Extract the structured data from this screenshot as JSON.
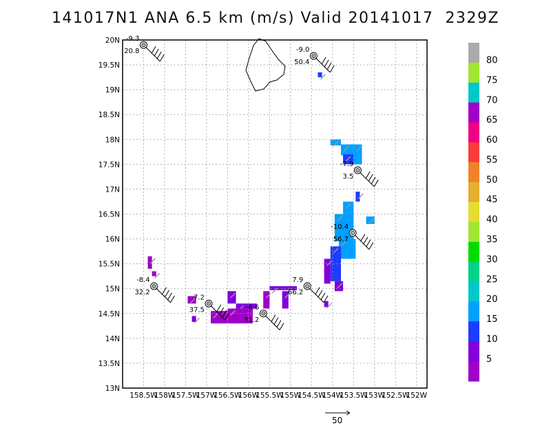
{
  "title": "141017N1 ANA 6.5 km (m/s) Valid 20141017  2329Z",
  "chart_data": {
    "type": "map",
    "lat_range": [
      13,
      20
    ],
    "lon_range": [
      -159,
      -151.75
    ],
    "lat_ticks": [
      {
        "v": 20,
        "label": "20N"
      },
      {
        "v": 19.5,
        "label": "19.5N"
      },
      {
        "v": 19,
        "label": "19N"
      },
      {
        "v": 18.5,
        "label": "18.5N"
      },
      {
        "v": 18,
        "label": "18N"
      },
      {
        "v": 17.5,
        "label": "17.5N"
      },
      {
        "v": 17,
        "label": "17N"
      },
      {
        "v": 16.5,
        "label": "16.5N"
      },
      {
        "v": 16,
        "label": "16N"
      },
      {
        "v": 15.5,
        "label": "15.5N"
      },
      {
        "v": 15,
        "label": "15N"
      },
      {
        "v": 14.5,
        "label": "14.5N"
      },
      {
        "v": 14,
        "label": "14N"
      },
      {
        "v": 13.5,
        "label": "13.5N"
      },
      {
        "v": 13,
        "label": "13N"
      }
    ],
    "lon_ticks": [
      {
        "v": -158.5,
        "label": "158.5W"
      },
      {
        "v": -158,
        "label": "158W"
      },
      {
        "v": -157.5,
        "label": "157.5W"
      },
      {
        "v": -157,
        "label": "157W"
      },
      {
        "v": -156.5,
        "label": "156.5W"
      },
      {
        "v": -156,
        "label": "156W"
      },
      {
        "v": -155.5,
        "label": "155.5W"
      },
      {
        "v": -155,
        "label": "155W"
      },
      {
        "v": -154.5,
        "label": "154.5W"
      },
      {
        "v": -154,
        "label": "154W"
      },
      {
        "v": -153.5,
        "label": "153.5W"
      },
      {
        "v": -153,
        "label": "153W"
      },
      {
        "v": -152.5,
        "label": "152.5W"
      },
      {
        "v": -152,
        "label": "152W"
      }
    ],
    "colorbar": {
      "colors": [
        "#a000c8",
        "#8200dc",
        "#1e3cff",
        "#00a0ff",
        "#00c8c8",
        "#00d28c",
        "#00dc00",
        "#a0e632",
        "#e6dc32",
        "#e6af2d",
        "#f08228",
        "#fa3c3c",
        "#f00082",
        "#a000c8",
        "#00c8c8",
        "#a0e632",
        "#aaaaaa"
      ],
      "labels": [
        "5",
        "10",
        "15",
        "20",
        "25",
        "30",
        "35",
        "40",
        "45",
        "50",
        "55",
        "60",
        "65",
        "70",
        "75",
        "80"
      ]
    },
    "stations": [
      {
        "lon": -158.5,
        "lat": 19.9,
        "top": "-9.3",
        "bottom": "20.8"
      },
      {
        "lon": -154.45,
        "lat": 19.68,
        "top": "-9.0",
        "bottom": "50.4"
      },
      {
        "lon": -153.4,
        "lat": 17.38,
        "top": "-7.9",
        "bottom": "3.5"
      },
      {
        "lon": -153.52,
        "lat": 16.12,
        "top": "-10.4",
        "bottom": "56.7"
      },
      {
        "lon": -158.25,
        "lat": 15.05,
        "top": "-8.4",
        "bottom": "32.2"
      },
      {
        "lon": -156.95,
        "lat": 14.7,
        "top": "7.2",
        "bottom": "37.5"
      },
      {
        "lon": -155.65,
        "lat": 14.5,
        "top": "-6.6",
        "bottom": "31.2"
      },
      {
        "lon": -154.6,
        "lat": 15.05,
        "top": "7.9",
        "bottom": "66.2"
      }
    ],
    "wind_cells": [
      {
        "lon": -154.05,
        "lat": 18.0,
        "w": 0.25,
        "h": 0.12,
        "v": 20
      },
      {
        "lon": -153.8,
        "lat": 17.9,
        "w": 0.3,
        "h": 0.22,
        "v": 20
      },
      {
        "lon": -153.5,
        "lat": 17.9,
        "w": 0.2,
        "h": 0.4,
        "v": 20
      },
      {
        "lon": -153.75,
        "lat": 17.7,
        "w": 0.25,
        "h": 0.2,
        "v": 15
      },
      {
        "lon": -153.2,
        "lat": 16.45,
        "w": 0.2,
        "h": 0.15,
        "v": 20
      },
      {
        "lon": -153.45,
        "lat": 16.95,
        "w": 0.1,
        "h": 0.2,
        "v": 15
      },
      {
        "lon": -153.75,
        "lat": 16.75,
        "w": 0.25,
        "h": 0.3,
        "v": 20
      },
      {
        "lon": -153.95,
        "lat": 16.5,
        "w": 0.45,
        "h": 0.55,
        "v": 20
      },
      {
        "lon": -153.85,
        "lat": 16.0,
        "w": 0.4,
        "h": 0.4,
        "v": 20
      },
      {
        "lon": -154.05,
        "lat": 15.85,
        "w": 0.25,
        "h": 0.7,
        "v": 15
      },
      {
        "lon": -154.2,
        "lat": 15.6,
        "w": 0.15,
        "h": 0.5,
        "v": 10
      },
      {
        "lon": -153.95,
        "lat": 15.15,
        "w": 0.2,
        "h": 0.2,
        "v": 10
      },
      {
        "lon": -154.2,
        "lat": 14.75,
        "w": 0.1,
        "h": 0.12,
        "v": 10
      },
      {
        "lon": -154.35,
        "lat": 19.35,
        "w": 0.1,
        "h": 0.1,
        "v": 15
      },
      {
        "lon": -155.5,
        "lat": 15.05,
        "w": 0.65,
        "h": 0.08,
        "v": 10
      },
      {
        "lon": -155.2,
        "lat": 14.95,
        "w": 0.15,
        "h": 0.35,
        "v": 10
      },
      {
        "lon": -155.65,
        "lat": 14.95,
        "w": 0.15,
        "h": 0.35,
        "v": 5
      },
      {
        "lon": -156.3,
        "lat": 14.7,
        "w": 0.5,
        "h": 0.1,
        "v": 10
      },
      {
        "lon": -156.5,
        "lat": 14.6,
        "w": 0.6,
        "h": 0.3,
        "v": 5
      },
      {
        "lon": -156.9,
        "lat": 14.55,
        "w": 0.4,
        "h": 0.25,
        "v": 5
      },
      {
        "lon": -156.5,
        "lat": 14.95,
        "w": 0.2,
        "h": 0.25,
        "v": 10
      },
      {
        "lon": -157.45,
        "lat": 14.85,
        "w": 0.2,
        "h": 0.15,
        "v": 5
      },
      {
        "lon": -157.35,
        "lat": 14.45,
        "w": 0.1,
        "h": 0.12,
        "v": 10
      },
      {
        "lon": -158.4,
        "lat": 15.65,
        "w": 0.1,
        "h": 0.25,
        "v": 5
      },
      {
        "lon": -158.3,
        "lat": 15.35,
        "w": 0.1,
        "h": 0.1,
        "v": 5
      }
    ],
    "scale_arrow_label": "50"
  }
}
